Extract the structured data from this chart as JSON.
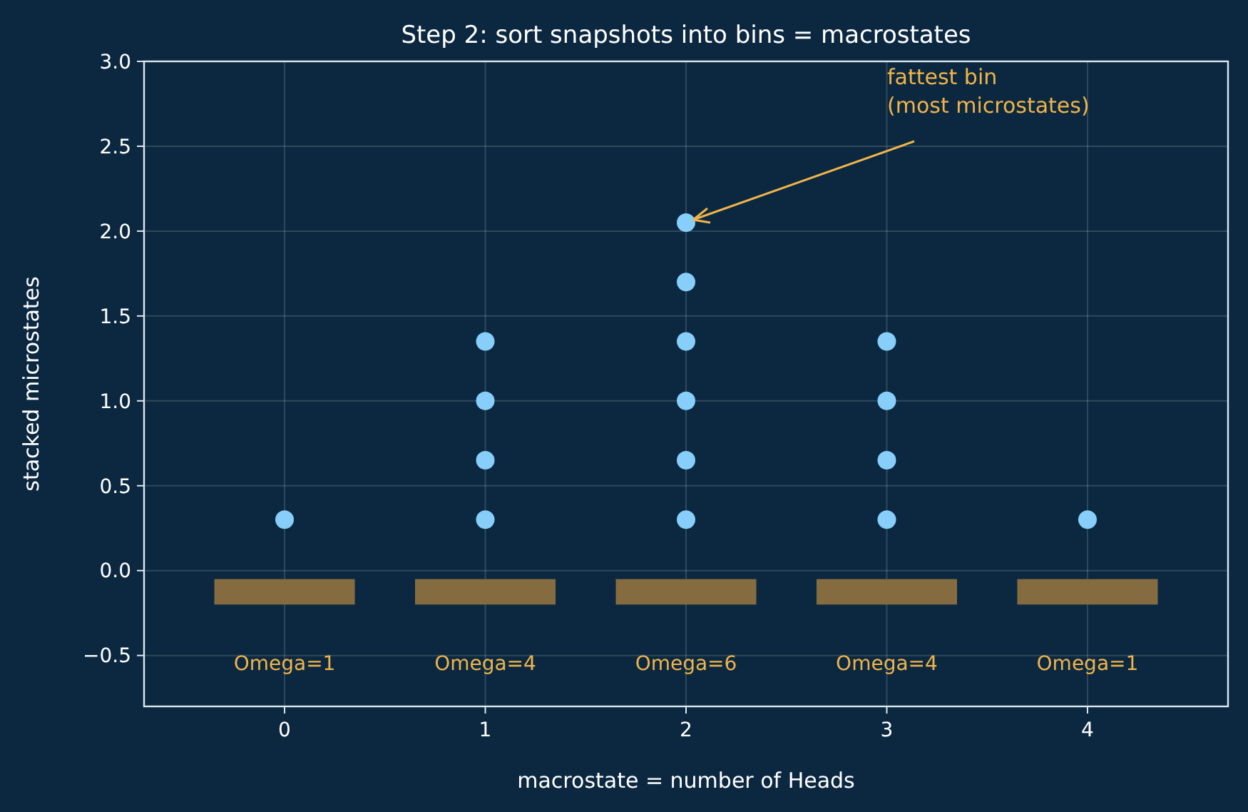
{
  "chart_data": {
    "type": "scatter",
    "title": "Step 2: sort snapshots into bins = macrostates",
    "xlabel": "macrostate = number of Heads",
    "ylabel": "stacked microstates",
    "xlim": [
      -0.7,
      4.7
    ],
    "ylim": [
      -0.8,
      3.0
    ],
    "xticks": [
      0,
      1,
      2,
      3,
      4
    ],
    "yticks": [
      {
        "value": -0.5,
        "label": "−0.5"
      },
      {
        "value": 0,
        "label": "0.0"
      },
      {
        "value": 0.5,
        "label": "0.5"
      },
      {
        "value": 1,
        "label": "1.0"
      },
      {
        "value": 1.5,
        "label": "1.5"
      },
      {
        "value": 2,
        "label": "2.0"
      },
      {
        "value": 2.5,
        "label": "2.5"
      },
      {
        "value": 3,
        "label": "3.0"
      }
    ],
    "grid": true,
    "marker": "circle",
    "series": [
      {
        "type": "bar",
        "color": "#856c40",
        "x": [
          0,
          1,
          2,
          3,
          4
        ],
        "base": [
          -0.2,
          -0.2,
          -0.2,
          -0.2,
          -0.2
        ],
        "values": [
          0.15,
          0.15,
          0.15,
          0.15,
          0.15
        ]
      },
      {
        "color": "#87cefa",
        "x": [
          0,
          1,
          1,
          1,
          1,
          2,
          2,
          2,
          2,
          2,
          2,
          3,
          3,
          3,
          3,
          4
        ],
        "values": [
          0.3,
          0.3,
          0.65,
          1.0,
          1.35,
          0.3,
          0.65,
          1.0,
          1.35,
          1.7,
          2.05,
          0.3,
          0.65,
          1.0,
          1.35,
          0.3
        ]
      }
    ],
    "annotations": [
      {
        "text": "fattest bin\n(most microstates)",
        "x": 2,
        "y": 2.05
      },
      "Omega=1",
      "Omega=4",
      "Omega=6",
      "Omega=4",
      "Omega=1"
    ]
  }
}
